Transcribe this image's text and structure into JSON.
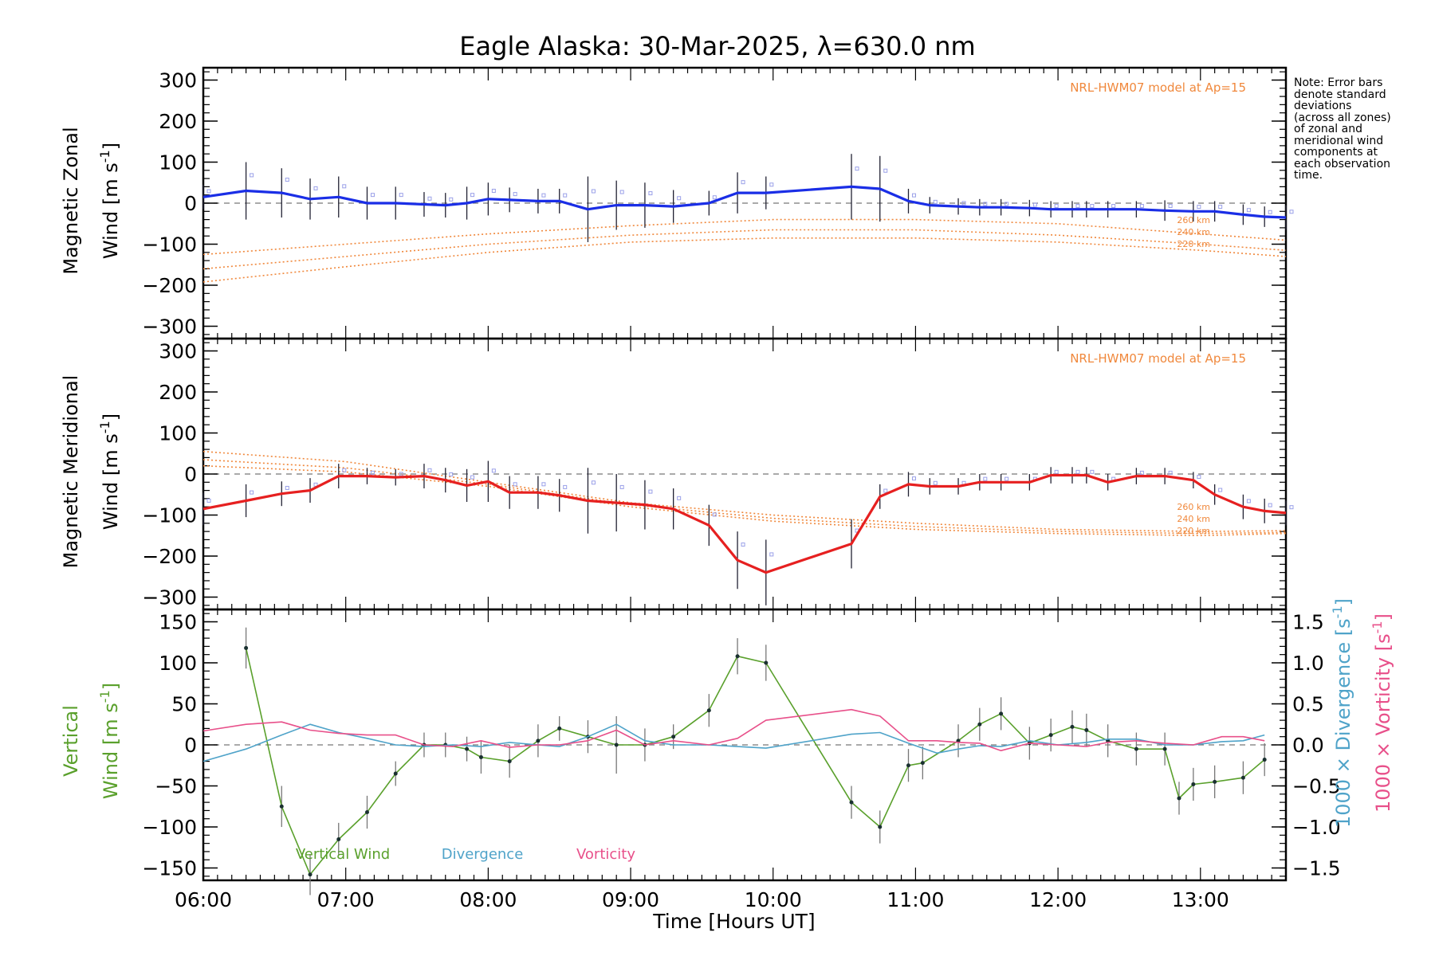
{
  "chart_data": {
    "type": "line",
    "title": "Eagle Alaska: 30-Mar-2025, λ=630.0 nm",
    "xlabel": "Time [Hours UT]",
    "xlim": [
      6.0,
      13.6
    ],
    "x_ticks": [
      "06:00",
      "07:00",
      "08:00",
      "09:00",
      "10:00",
      "11:00",
      "12:00",
      "13:00"
    ],
    "note_lines": [
      "Note: Error bars",
      "denote standard",
      "deviations",
      "(across all zones)",
      "of zonal and",
      "meridional wind",
      "components at",
      "each observation",
      "time."
    ],
    "model_label": "NRL-HWM07 model at Ap=15",
    "model_altitudes": [
      "260 km",
      "240 km",
      "220 km"
    ],
    "panels": [
      {
        "name": "zonal",
        "ylabel_line1": "Magnetic Zonal",
        "ylabel_line2": "Wind [m s",
        "ylabel_sup": "-1",
        "ylabel_close": "]",
        "ylim": [
          -330,
          330
        ],
        "yticks": [
          300,
          200,
          100,
          0,
          -100,
          -200,
          -300
        ],
        "series": [
          {
            "name": "Magnetic Zonal Wind",
            "color": "#1a2ee6",
            "x": [
              6.0,
              6.3,
              6.55,
              6.75,
              6.95,
              7.15,
              7.35,
              7.55,
              7.7,
              7.85,
              8.0,
              8.15,
              8.35,
              8.5,
              8.7,
              8.9,
              9.1,
              9.3,
              9.55,
              9.75,
              9.95,
              10.55,
              10.75,
              10.95,
              11.1,
              11.3,
              11.45,
              11.6,
              11.8,
              11.95,
              12.1,
              12.2,
              12.35,
              12.55,
              12.75,
              12.95,
              13.1,
              13.3,
              13.45,
              13.6
            ],
            "y": [
              15,
              30,
              25,
              10,
              15,
              0,
              0,
              -3,
              -5,
              0,
              10,
              8,
              5,
              5,
              -15,
              -5,
              -5,
              -8,
              0,
              25,
              25,
              40,
              35,
              5,
              -5,
              -8,
              -10,
              -10,
              -12,
              -15,
              -15,
              -15,
              -15,
              -15,
              -18,
              -20,
              -20,
              -28,
              -33,
              -35
            ],
            "err": [
              30,
              70,
              60,
              50,
              50,
              40,
              40,
              30,
              30,
              40,
              40,
              30,
              30,
              30,
              80,
              60,
              55,
              40,
              30,
              50,
              40,
              80,
              80,
              30,
              20,
              20,
              20,
              20,
              20,
              20,
              20,
              20,
              20,
              20,
              25,
              25,
              25,
              25,
              25,
              30
            ]
          }
        ],
        "model_curves": [
          {
            "name": "260 km",
            "x": [
              6.0,
              7.0,
              8.0,
              9.0,
              10.0,
              11.0,
              12.0,
              13.0,
              13.6
            ],
            "y": [
              -125,
              -100,
              -75,
              -55,
              -40,
              -40,
              -50,
              -75,
              -90
            ]
          },
          {
            "name": "240 km",
            "x": [
              6.0,
              7.0,
              8.0,
              9.0,
              10.0,
              11.0,
              12.0,
              13.0,
              13.6
            ],
            "y": [
              -160,
              -130,
              -100,
              -78,
              -65,
              -65,
              -78,
              -100,
              -115
            ]
          },
          {
            "name": "220 km",
            "x": [
              6.0,
              7.0,
              8.0,
              9.0,
              10.0,
              11.0,
              12.0,
              13.0,
              13.6
            ],
            "y": [
              -192,
              -155,
              -120,
              -95,
              -85,
              -85,
              -95,
              -115,
              -130
            ]
          }
        ]
      },
      {
        "name": "meridional",
        "ylabel_line1": "Magnetic Meridional",
        "ylabel_line2": "Wind [m s",
        "ylabel_sup": "-1",
        "ylabel_close": "]",
        "ylim": [
          -330,
          330
        ],
        "yticks": [
          300,
          200,
          100,
          0,
          -100,
          -200,
          -300
        ],
        "series": [
          {
            "name": "Magnetic Meridional Wind",
            "color": "#e62020",
            "x": [
              6.0,
              6.3,
              6.55,
              6.75,
              6.95,
              7.15,
              7.35,
              7.55,
              7.7,
              7.85,
              8.0,
              8.15,
              8.35,
              8.5,
              8.7,
              8.9,
              9.1,
              9.3,
              9.55,
              9.75,
              9.95,
              10.55,
              10.75,
              10.95,
              11.1,
              11.3,
              11.45,
              11.6,
              11.8,
              11.95,
              12.1,
              12.2,
              12.35,
              12.55,
              12.75,
              12.95,
              13.1,
              13.3,
              13.45,
              13.6
            ],
            "y": [
              -85,
              -65,
              -48,
              -40,
              -5,
              -5,
              -8,
              -5,
              -15,
              -28,
              -18,
              -45,
              -45,
              -52,
              -65,
              -70,
              -75,
              -85,
              -125,
              -210,
              -240,
              -170,
              -55,
              -25,
              -30,
              -30,
              -20,
              -20,
              -20,
              -3,
              -3,
              -3,
              -20,
              -5,
              -5,
              -15,
              -50,
              -80,
              -90,
              -95
            ],
            "err": [
              40,
              40,
              30,
              30,
              30,
              20,
              20,
              30,
              30,
              40,
              50,
              40,
              40,
              40,
              80,
              70,
              60,
              50,
              50,
              70,
              80,
              60,
              30,
              30,
              20,
              20,
              20,
              20,
              20,
              20,
              20,
              20,
              20,
              20,
              20,
              20,
              25,
              30,
              30,
              30
            ]
          }
        ],
        "model_curves": [
          {
            "name": "260 km",
            "x": [
              6.0,
              7.0,
              8.0,
              9.0,
              10.0,
              11.0,
              12.0,
              13.0,
              13.6
            ],
            "y": [
              55,
              30,
              -20,
              -70,
              -100,
              -120,
              -135,
              -140,
              -138
            ]
          },
          {
            "name": "240 km",
            "x": [
              6.0,
              7.0,
              8.0,
              9.0,
              10.0,
              11.0,
              12.0,
              13.0,
              13.6
            ],
            "y": [
              35,
              15,
              -25,
              -75,
              -108,
              -128,
              -140,
              -145,
              -142
            ]
          },
          {
            "name": "220 km",
            "x": [
              6.0,
              7.0,
              8.0,
              9.0,
              10.0,
              11.0,
              12.0,
              13.0,
              13.6
            ],
            "y": [
              20,
              5,
              -30,
              -80,
              -115,
              -135,
              -145,
              -150,
              -145
            ]
          }
        ]
      },
      {
        "name": "vertical",
        "ylabel_line1": "Vertical",
        "ylabel_line2": "Wind [m s",
        "ylabel_sup": "-1",
        "ylabel_close": "]",
        "ylim": [
          -165,
          165
        ],
        "yticks": [
          150,
          100,
          50,
          0,
          -50,
          -100,
          -150
        ],
        "y2lim": [
          -1.65,
          1.65
        ],
        "y2ticks": [
          "1.5",
          "1.0",
          "0.5",
          "0.0",
          "-0.5",
          "-1.0",
          "-1.5"
        ],
        "y2label_div": "1000 × Divergence [s",
        "y2label_vor": "1000 × Vorticity [s",
        "y2label_sup": "-1",
        "y2label_close": "]",
        "legend": [
          "Vertical Wind",
          "Divergence",
          "Vorticity"
        ],
        "series": [
          {
            "name": "Vertical Wind",
            "color": "#5aa02c",
            "axis": "left",
            "x": [
              6.3,
              6.55,
              6.75,
              6.95,
              7.15,
              7.35,
              7.55,
              7.7,
              7.85,
              7.95,
              8.15,
              8.35,
              8.5,
              8.7,
              8.9,
              9.1,
              9.3,
              9.55,
              9.75,
              9.95,
              10.55,
              10.75,
              10.95,
              11.05,
              11.3,
              11.45,
              11.6,
              11.8,
              11.95,
              12.1,
              12.2,
              12.35,
              12.55,
              12.75,
              12.85,
              12.95,
              13.1,
              13.3,
              13.45
            ],
            "y": [
              118,
              -75,
              -158,
              -115,
              -82,
              -35,
              0,
              0,
              -5,
              -15,
              -20,
              5,
              20,
              10,
              0,
              0,
              10,
              42,
              108,
              100,
              -70,
              -100,
              -25,
              -22,
              5,
              25,
              38,
              2,
              12,
              22,
              18,
              5,
              -5,
              -5,
              -65,
              -48,
              -45,
              -40,
              -18
            ],
            "err": [
              25,
              25,
              25,
              20,
              20,
              15,
              15,
              15,
              15,
              20,
              20,
              20,
              15,
              20,
              35,
              20,
              15,
              20,
              22,
              22,
              20,
              20,
              20,
              20,
              20,
              20,
              20,
              20,
              20,
              20,
              20,
              20,
              20,
              20,
              20,
              20,
              20,
              20,
              20
            ]
          },
          {
            "name": "Divergence",
            "color": "#4fa3c9",
            "axis": "right",
            "x": [
              6.0,
              6.3,
              6.55,
              6.75,
              6.95,
              7.15,
              7.35,
              7.55,
              7.75,
              7.95,
              8.15,
              8.35,
              8.5,
              8.7,
              8.9,
              9.1,
              9.3,
              9.55,
              9.75,
              9.95,
              10.55,
              10.75,
              10.95,
              11.15,
              11.3,
              11.45,
              11.6,
              11.8,
              12.0,
              12.2,
              12.35,
              12.55,
              12.75,
              12.95,
              13.15,
              13.3,
              13.45
            ],
            "y": [
              -0.2,
              -0.05,
              0.12,
              0.25,
              0.15,
              0.08,
              0.0,
              -0.02,
              0.0,
              -0.02,
              0.03,
              0.0,
              -0.02,
              0.1,
              0.25,
              0.05,
              0.0,
              0.0,
              -0.02,
              -0.04,
              0.13,
              0.15,
              0.02,
              -0.1,
              -0.05,
              -0.01,
              -0.02,
              0.05,
              0.0,
              0.03,
              0.07,
              0.07,
              0.0,
              0.0,
              0.04,
              0.05,
              0.12
            ]
          },
          {
            "name": "Vorticity",
            "color": "#e8508a",
            "axis": "right",
            "x": [
              6.0,
              6.3,
              6.55,
              6.75,
              6.95,
              7.15,
              7.35,
              7.55,
              7.75,
              7.95,
              8.15,
              8.35,
              8.5,
              8.7,
              8.9,
              9.1,
              9.3,
              9.55,
              9.75,
              9.95,
              10.55,
              10.75,
              10.95,
              11.15,
              11.3,
              11.45,
              11.6,
              11.8,
              12.0,
              12.2,
              12.35,
              12.55,
              12.75,
              12.95,
              13.15,
              13.3,
              13.45
            ],
            "y": [
              0.17,
              0.25,
              0.28,
              0.18,
              0.14,
              0.12,
              0.12,
              0.0,
              -0.02,
              0.05,
              -0.03,
              0.0,
              0.0,
              0.05,
              0.18,
              0.0,
              0.05,
              0.0,
              0.08,
              0.3,
              0.43,
              0.35,
              0.05,
              0.05,
              0.03,
              0.02,
              -0.07,
              0.02,
              0.0,
              -0.02,
              0.03,
              0.05,
              0.02,
              0.0,
              0.1,
              0.1,
              0.05
            ]
          }
        ]
      }
    ]
  }
}
